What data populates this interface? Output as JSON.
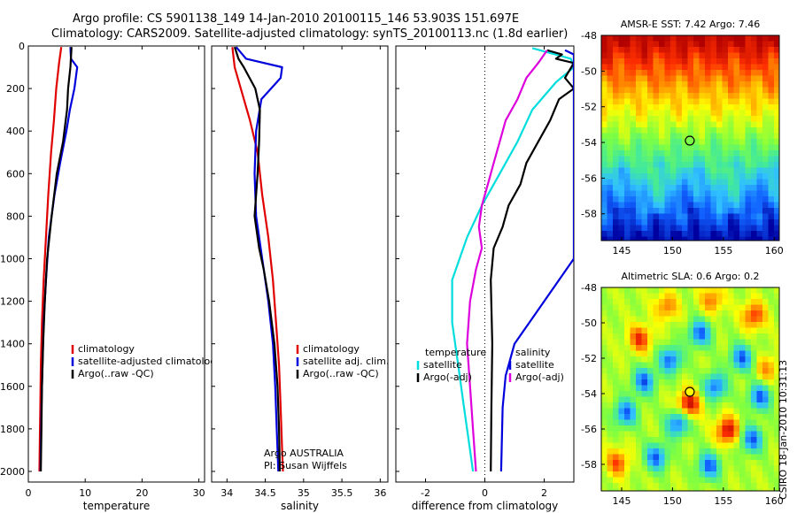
{
  "header": {
    "line1": "Argo profile: CS 5901138_149 14-Jan-2010 20100115_146 53.903S 151.697E",
    "line2": "Climatology: CARS2009. Satellite-adjusted climatology: synTS_20100113.nc (1.8d earlier)"
  },
  "footer": {
    "owner": "Argo AUSTRALIA",
    "pi": "PI: Susan Wijffels",
    "stamp": "CSIRO 18-Jan-2010 10:31:13"
  },
  "colors": {
    "climatology": "#e00000",
    "satellite": "#0000dd",
    "argo": "#000000",
    "temp_diff": "#00dddd",
    "sal_diff": "#dd00dd",
    "text": "#000000",
    "axis": "#000000"
  },
  "chart_data": [
    {
      "id": "temperature",
      "type": "line",
      "xlabel": "temperature",
      "ylabel": "",
      "xlim": [
        0,
        31
      ],
      "ylim": [
        2050,
        0
      ],
      "xticks": [
        "0",
        "10",
        "20",
        "30"
      ],
      "xtick_values": [
        0,
        10,
        20,
        30
      ],
      "yticks": [
        "0",
        "200",
        "400",
        "600",
        "800",
        "1000",
        "1200",
        "1400",
        "1600",
        "1800",
        "2000"
      ],
      "ytick_values": [
        0,
        200,
        400,
        600,
        800,
        1000,
        1200,
        1400,
        1600,
        1800,
        2000
      ],
      "legend": [
        "climatology",
        "satellite-adjusted climatology",
        "Argo(..raw -QC)"
      ],
      "series": [
        {
          "name": "climatology",
          "color_key": "climatology",
          "points": [
            [
              5.8,
              5
            ],
            [
              5.4,
              80
            ],
            [
              4.9,
              200
            ],
            [
              4.5,
              350
            ],
            [
              4.0,
              500
            ],
            [
              3.5,
              700
            ],
            [
              3.1,
              900
            ],
            [
              2.7,
              1100
            ],
            [
              2.4,
              1300
            ],
            [
              2.2,
              1500
            ],
            [
              2.1,
              1700
            ],
            [
              2.0,
              1900
            ],
            [
              1.95,
              2000
            ]
          ]
        },
        {
          "name": "satellite-adjusted climatology",
          "color_key": "satellite",
          "points": [
            [
              7.4,
              5
            ],
            [
              7.5,
              60
            ],
            [
              8.6,
              100
            ],
            [
              8.1,
              200
            ],
            [
              7.3,
              300
            ],
            [
              6.7,
              400
            ],
            [
              5.6,
              550
            ],
            [
              4.6,
              700
            ],
            [
              3.6,
              900
            ],
            [
              3.1,
              1100
            ],
            [
              2.7,
              1300
            ],
            [
              2.5,
              1500
            ],
            [
              2.3,
              1700
            ],
            [
              2.2,
              1900
            ],
            [
              2.15,
              2000
            ]
          ]
        },
        {
          "name": "Argo(..raw -QC)",
          "color_key": "argo",
          "points": [
            [
              7.6,
              5
            ],
            [
              7.4,
              100
            ],
            [
              7.0,
              200
            ],
            [
              6.8,
              300
            ],
            [
              6.1,
              450
            ],
            [
              5.0,
              600
            ],
            [
              4.1,
              800
            ],
            [
              3.3,
              1000
            ],
            [
              2.9,
              1200
            ],
            [
              2.6,
              1400
            ],
            [
              2.4,
              1600
            ],
            [
              2.3,
              1800
            ],
            [
              2.2,
              2000
            ]
          ]
        }
      ]
    },
    {
      "id": "salinity",
      "type": "line",
      "xlabel": "salinity",
      "ylabel": "",
      "xlim": [
        33.8,
        36.1
      ],
      "ylim": [
        2050,
        0
      ],
      "xticks": [
        "34",
        "34.5",
        "35",
        "35.5",
        "36"
      ],
      "xtick_values": [
        34,
        34.5,
        35,
        35.5,
        36
      ],
      "legend": [
        "climatology",
        "satellite adj. clim.",
        "Argo(..raw -QC)"
      ],
      "series": [
        {
          "name": "climatology",
          "color_key": "climatology",
          "points": [
            [
              34.07,
              5
            ],
            [
              34.1,
              100
            ],
            [
              34.18,
              200
            ],
            [
              34.3,
              350
            ],
            [
              34.4,
              500
            ],
            [
              34.46,
              700
            ],
            [
              34.54,
              900
            ],
            [
              34.6,
              1100
            ],
            [
              34.64,
              1300
            ],
            [
              34.68,
              1500
            ],
            [
              34.7,
              1700
            ],
            [
              34.72,
              1900
            ],
            [
              34.73,
              2000
            ]
          ]
        },
        {
          "name": "satellite adj. clim.",
          "color_key": "satellite",
          "points": [
            [
              34.12,
              5
            ],
            [
              34.25,
              60
            ],
            [
              34.72,
              100
            ],
            [
              34.7,
              150
            ],
            [
              34.45,
              250
            ],
            [
              34.38,
              400
            ],
            [
              34.36,
              600
            ],
            [
              34.38,
              800
            ],
            [
              34.46,
              1000
            ],
            [
              34.54,
              1200
            ],
            [
              34.6,
              1400
            ],
            [
              34.63,
              1600
            ],
            [
              34.65,
              1800
            ],
            [
              34.67,
              2000
            ]
          ]
        },
        {
          "name": "Argo(..raw -QC)",
          "color_key": "argo",
          "points": [
            [
              34.1,
              5
            ],
            [
              34.15,
              60
            ],
            [
              34.22,
              100
            ],
            [
              34.37,
              200
            ],
            [
              34.43,
              300
            ],
            [
              34.42,
              450
            ],
            [
              34.4,
              600
            ],
            [
              34.36,
              800
            ],
            [
              34.42,
              950
            ],
            [
              34.48,
              1050
            ],
            [
              34.55,
              1200
            ],
            [
              34.62,
              1400
            ],
            [
              34.66,
              1600
            ],
            [
              34.68,
              1800
            ],
            [
              34.69,
              2000
            ]
          ]
        }
      ]
    },
    {
      "id": "difference",
      "type": "line",
      "xlabel": "difference from climatology",
      "ylabel": "",
      "xlim": [
        -3,
        3
      ],
      "ylim": [
        2050,
        0
      ],
      "xticks": [
        "-2",
        "0",
        "2"
      ],
      "xtick_values": [
        -2,
        0,
        2
      ],
      "zero_line": 0,
      "legend_left_title": "temperature",
      "legend_right_title": "salinity",
      "legend": [
        "satellite",
        "Argo(-adj)",
        "satellite",
        "Argo(-adj)"
      ],
      "series": [
        {
          "name": "temperature satellite",
          "color_key": "temp_diff",
          "points": [
            [
              1.6,
              10
            ],
            [
              2.9,
              60
            ],
            [
              3.0,
              100
            ],
            [
              2.4,
              170
            ],
            [
              1.6,
              300
            ],
            [
              1.1,
              450
            ],
            [
              0.5,
              600
            ],
            [
              -0.1,
              750
            ],
            [
              -0.6,
              900
            ],
            [
              -1.1,
              1100
            ],
            [
              -1.1,
              1300
            ],
            [
              -0.9,
              1500
            ],
            [
              -0.7,
              1700
            ],
            [
              -0.5,
              1900
            ],
            [
              -0.4,
              2000
            ]
          ]
        },
        {
          "name": "temperature Argo(-adj)",
          "color_key": "argo",
          "points": [
            [
              2.1,
              20
            ],
            [
              2.6,
              40
            ],
            [
              2.4,
              60
            ],
            [
              3.0,
              80
            ],
            [
              2.7,
              150
            ],
            [
              3.0,
              200
            ],
            [
              2.5,
              250
            ],
            [
              2.2,
              350
            ],
            [
              1.8,
              450
            ],
            [
              1.4,
              550
            ],
            [
              1.2,
              650
            ],
            [
              0.8,
              750
            ],
            [
              0.6,
              850
            ],
            [
              0.3,
              950
            ],
            [
              0.2,
              1100
            ],
            [
              0.25,
              1400
            ],
            [
              0.22,
              1700
            ],
            [
              0.2,
              2000
            ]
          ]
        },
        {
          "name": "salinity satellite",
          "color_key": "satellite",
          "points": [
            [
              2.7,
              20
            ],
            [
              3.0,
              40
            ],
            [
              3.0,
              1000
            ],
            [
              2.5,
              1100
            ],
            [
              2.0,
              1200
            ],
            [
              1.5,
              1300
            ],
            [
              1.0,
              1400
            ],
            [
              0.7,
              1550
            ],
            [
              0.6,
              1700
            ],
            [
              0.55,
              2000
            ]
          ]
        },
        {
          "name": "salinity Argo(-adj)",
          "color_key": "sal_diff",
          "points": [
            [
              2.1,
              20
            ],
            [
              1.8,
              80
            ],
            [
              1.4,
              150
            ],
            [
              1.1,
              250
            ],
            [
              0.7,
              350
            ],
            [
              0.5,
              450
            ],
            [
              0.3,
              550
            ],
            [
              0.1,
              650
            ],
            [
              -0.1,
              750
            ],
            [
              -0.2,
              850
            ],
            [
              -0.1,
              950
            ],
            [
              -0.3,
              1050
            ],
            [
              -0.5,
              1200
            ],
            [
              -0.6,
              1400
            ],
            [
              -0.5,
              1600
            ],
            [
              -0.4,
              1800
            ],
            [
              -0.3,
              2000
            ]
          ]
        }
      ]
    },
    {
      "id": "sst_map",
      "type": "heatmap",
      "title": "AMSR-E SST: 7.42 Argo: 7.46",
      "xlim": [
        143,
        160.5
      ],
      "ylim": [
        -59.5,
        -48
      ],
      "xticks": [
        "145",
        "150",
        "155",
        "160"
      ],
      "xtick_values": [
        145,
        150,
        155,
        160
      ],
      "yticks": [
        "-48",
        "-50",
        "-52",
        "-54",
        "-56",
        "-58"
      ],
      "ytick_values": [
        -48,
        -50,
        -52,
        -54,
        -56,
        -58
      ],
      "marker": {
        "lon": 151.7,
        "lat": -53.9,
        "fill": "none"
      },
      "palette": [
        "#0000a0",
        "#1060ff",
        "#30c0ff",
        "#40e8a0",
        "#80ff40",
        "#ffff00",
        "#ffa000",
        "#ff3000",
        "#b00000"
      ]
    },
    {
      "id": "sla_map",
      "type": "heatmap",
      "title": "Altimetric SLA: 0.6 Argo: 0.2",
      "xlim": [
        143,
        160.5
      ],
      "ylim": [
        -59.5,
        -48
      ],
      "xticks": [
        "145",
        "150",
        "155",
        "160"
      ],
      "xtick_values": [
        145,
        150,
        155,
        160
      ],
      "yticks": [
        "-48",
        "-50",
        "-52",
        "-54",
        "-56",
        "-58"
      ],
      "ytick_values": [
        -48,
        -50,
        -52,
        -54,
        -56,
        -58
      ],
      "marker": {
        "lon": 151.7,
        "lat": -53.9,
        "fill": "#ffff00"
      },
      "palette": [
        "#0000a0",
        "#1060ff",
        "#30c0ff",
        "#40e8a0",
        "#80ff40",
        "#ffff00",
        "#ffa000",
        "#ff3000",
        "#b00000"
      ]
    }
  ]
}
